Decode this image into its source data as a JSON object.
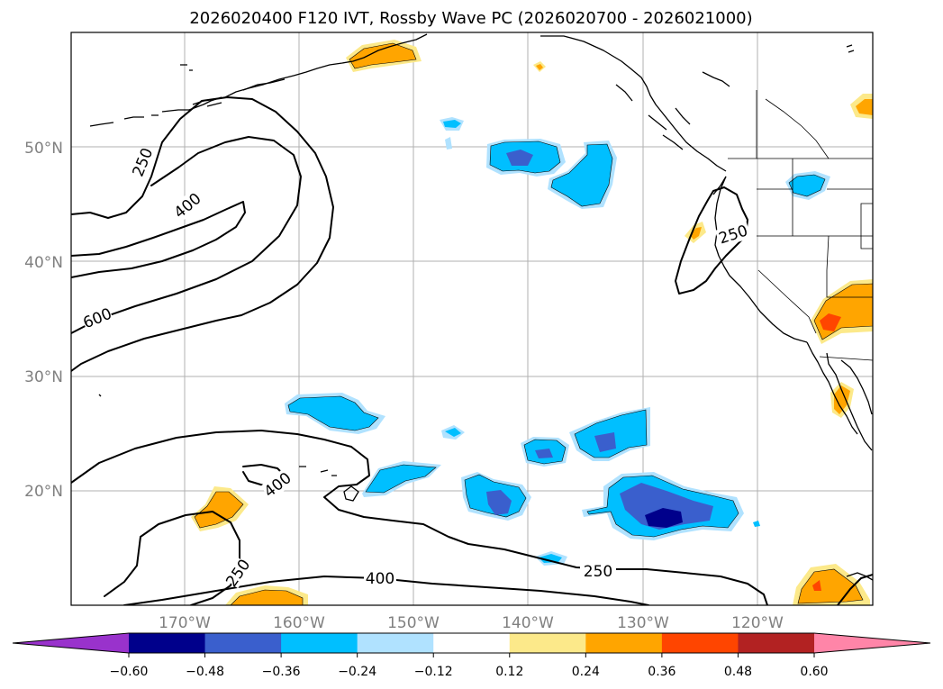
{
  "title": "2026020400 F120 IVT, Rossby Wave PC (2026020700 - 2026021000)",
  "lat_labels": [
    "50°N",
    "40°N",
    "30°N",
    "20°N"
  ],
  "lon_labels": [
    "170°W",
    "160°W",
    "150°W",
    "140°W",
    "130°W",
    "120°W"
  ],
  "contour_labels": [
    "250",
    "400",
    "600",
    "400",
    "250",
    "400",
    "250",
    "250"
  ],
  "colorbar": {
    "ticks": [
      "−0.60",
      "−0.48",
      "−0.36",
      "−0.24",
      "−0.12",
      "0.12",
      "0.24",
      "0.36",
      "0.48",
      "0.60"
    ],
    "colors": [
      "#9932cc",
      "#00008b",
      "#3a5fcd",
      "#00bfff",
      "#b0e2ff",
      "#ffffff",
      "#fce98a",
      "#ffa500",
      "#ff4500",
      "#b22222",
      "#ff85a8"
    ]
  }
}
